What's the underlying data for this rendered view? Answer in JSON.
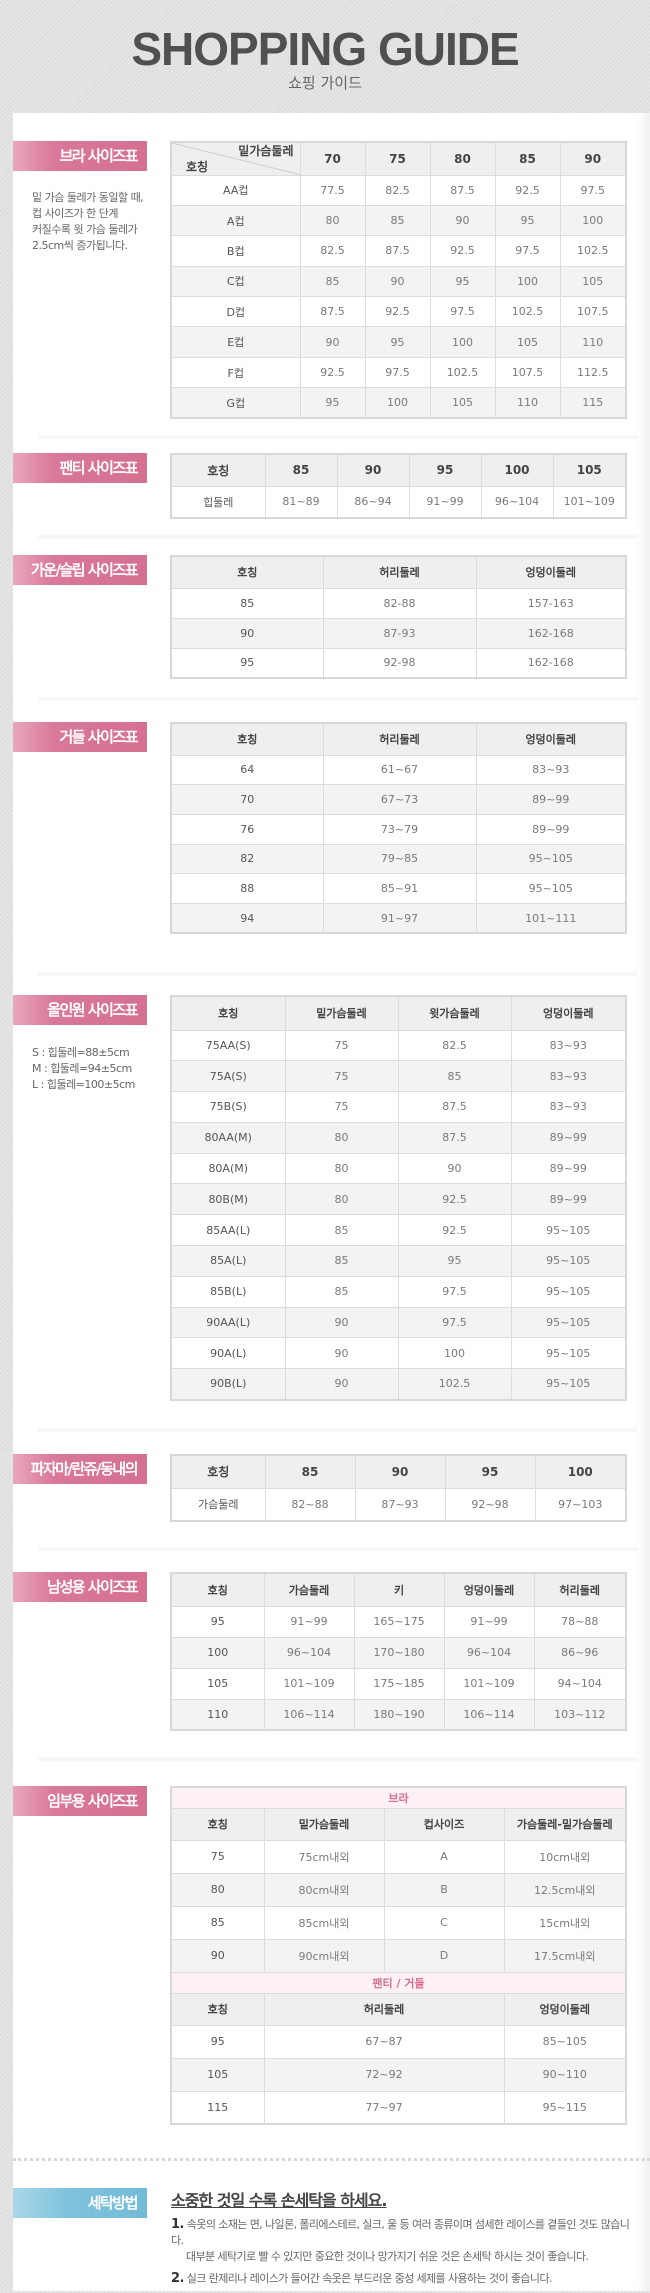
{
  "header": {
    "title": "SHOPPING GUIDE",
    "subtitle": "쇼핑 가이드"
  },
  "sections": [
    {
      "title": "브라 사이즈표",
      "note_lines": [
        "밑 가슴 둘레가 동일할 때,",
        "컵 사이즈가 한 단계",
        "커질수록 윗 가슴 둘레가",
        "2.5cm씩 증가됩니다."
      ],
      "tables": [
        {
          "corner": {
            "top": "밑가슴둘레",
            "bottom": "호칭"
          },
          "headers": [
            "70",
            "75",
            "80",
            "85",
            "90"
          ],
          "rows": [
            [
              "AA컵",
              "77.5",
              "82.5",
              "87.5",
              "92.5",
              "97.5"
            ],
            [
              "A컵",
              "80",
              "85",
              "90",
              "95",
              "100"
            ],
            [
              "B컵",
              "82.5",
              "87.5",
              "92.5",
              "97.5",
              "102.5"
            ],
            [
              "C컵",
              "85",
              "90",
              "95",
              "100",
              "105"
            ],
            [
              "D컵",
              "87.5",
              "92.5",
              "97.5",
              "102.5",
              "107.5"
            ],
            [
              "E컵",
              "90",
              "95",
              "100",
              "105",
              "110"
            ],
            [
              "F컵",
              "92.5",
              "97.5",
              "102.5",
              "107.5",
              "112.5"
            ],
            [
              "G컵",
              "95",
              "100",
              "105",
              "110",
              "115"
            ]
          ]
        }
      ]
    },
    {
      "title": "팬티 사이즈표",
      "tables": [
        {
          "headers": [
            "호칭",
            "85",
            "90",
            "95",
            "100",
            "105"
          ],
          "rows": [
            [
              "힙둘레",
              "81~89",
              "86~94",
              "91~99",
              "96~104",
              "101~109"
            ]
          ]
        }
      ]
    },
    {
      "title": "가운/슬립 사이즈표",
      "tables": [
        {
          "headers": [
            "호칭",
            "허리둘레",
            "엉덩이둘레"
          ],
          "rows": [
            [
              "85",
              "82-88",
              "157-163"
            ],
            [
              "90",
              "87-93",
              "162-168"
            ],
            [
              "95",
              "92-98",
              "162-168"
            ]
          ]
        }
      ]
    },
    {
      "title": "거들 사이즈표",
      "tables": [
        {
          "headers": [
            "호칭",
            "허리둘레",
            "엉덩이둘레"
          ],
          "rows": [
            [
              "64",
              "61~67",
              "83~93"
            ],
            [
              "70",
              "67~73",
              "89~99"
            ],
            [
              "76",
              "73~79",
              "89~99"
            ],
            [
              "82",
              "79~85",
              "95~105"
            ],
            [
              "88",
              "85~91",
              "95~105"
            ],
            [
              "94",
              "91~97",
              "101~111"
            ]
          ]
        }
      ]
    },
    {
      "title": "올인원 사이즈표",
      "note_lines": [
        "S : 힙둘레=88±5cm",
        "M : 힙둘레=94±5cm",
        "L : 힙둘레=100±5cm"
      ],
      "tables": [
        {
          "headers": [
            "호칭",
            "밑가슴둘레",
            "윗가슴둘레",
            "엉덩이둘레"
          ],
          "rows": [
            [
              "75AA(S)",
              "75",
              "82.5",
              "83~93"
            ],
            [
              "75A(S)",
              "75",
              "85",
              "83~93"
            ],
            [
              "75B(S)",
              "75",
              "87.5",
              "83~93"
            ],
            [
              "80AA(M)",
              "80",
              "87.5",
              "89~99"
            ],
            [
              "80A(M)",
              "80",
              "90",
              "89~99"
            ],
            [
              "80B(M)",
              "80",
              "92.5",
              "89~99"
            ],
            [
              "85AA(L)",
              "85",
              "92.5",
              "95~105"
            ],
            [
              "85A(L)",
              "85",
              "95",
              "95~105"
            ],
            [
              "85B(L)",
              "85",
              "97.5",
              "95~105"
            ],
            [
              "90AA(L)",
              "90",
              "97.5",
              "95~105"
            ],
            [
              "90A(L)",
              "90",
              "100",
              "95~105"
            ],
            [
              "90B(L)",
              "90",
              "102.5",
              "95~105"
            ]
          ]
        }
      ]
    },
    {
      "title": "파자마/란쥬/동내의",
      "tables": [
        {
          "headers": [
            "호칭",
            "85",
            "90",
            "95",
            "100"
          ],
          "rows": [
            [
              "가슴둘레",
              "82~88",
              "87~93",
              "92~98",
              "97~103"
            ]
          ]
        }
      ]
    },
    {
      "title": "남성용 사이즈표",
      "tables": [
        {
          "headers": [
            "호칭",
            "가슴둘레",
            "키",
            "엉덩이둘레",
            "허리둘레"
          ],
          "rows": [
            [
              "95",
              "91~99",
              "165~175",
              "91~99",
              "78~88"
            ],
            [
              "100",
              "96~104",
              "170~180",
              "96~104",
              "86~96"
            ],
            [
              "105",
              "101~109",
              "175~185",
              "101~109",
              "94~104"
            ],
            [
              "110",
              "106~114",
              "180~190",
              "106~114",
              "103~112"
            ]
          ]
        }
      ]
    },
    {
      "title": "임부용 사이즈표",
      "tables": [
        {
          "subtitle": "브라",
          "headers": [
            "호칭",
            "밑가슴둘레",
            "컵사이즈",
            "가슴둘레-밑가슴둘레"
          ],
          "rows": [
            [
              "75",
              "75cm내외",
              "A",
              "10cm내외"
            ],
            [
              "80",
              "80cm내외",
              "B",
              "12.5cm내외"
            ],
            [
              "85",
              "85cm내외",
              "C",
              "15cm내외"
            ],
            [
              "90",
              "90cm내외",
              "D",
              "17.5cm내외"
            ]
          ]
        },
        {
          "subtitle": "팬티 / 거들",
          "headers": [
            "호칭",
            "허리둘레",
            "엉덩이둘레"
          ],
          "rows": [
            [
              "95",
              "67~87",
              "85~105"
            ],
            [
              "105",
              "72~92",
              "90~110"
            ],
            [
              "115",
              "77~97",
              "95~115"
            ]
          ]
        }
      ]
    }
  ],
  "washing": {
    "title": "세탁방법",
    "heading": "소중한 것일 수록 손세탁을 하세요.",
    "items": [
      {
        "num": "1.",
        "lines": [
          "속옷의 소재는 면, 나일론, 폴리에스테르, 실크, 울 등 여러 종류이며 섬세한 레이스를 곁들인 것도 많습니다.",
          "대부분 세탁기로 빨 수 있지만 중요한 것이나 망가지기 쉬운 것은 손세탁 하시는 것이 좋습니다."
        ]
      },
      {
        "num": "2.",
        "lines": [
          "실크 란제리나 레이스가 들어간 속옷은 부드러운 중성 세제를 사용하는 것이 좋습니다."
        ]
      }
    ]
  },
  "colors": {
    "label_pink": "#d5708f",
    "label_blue": "#72bbd6",
    "header_bg": "#efefef",
    "alt_row": "#f3f3f3",
    "sub_header_text": "#d5708f"
  }
}
